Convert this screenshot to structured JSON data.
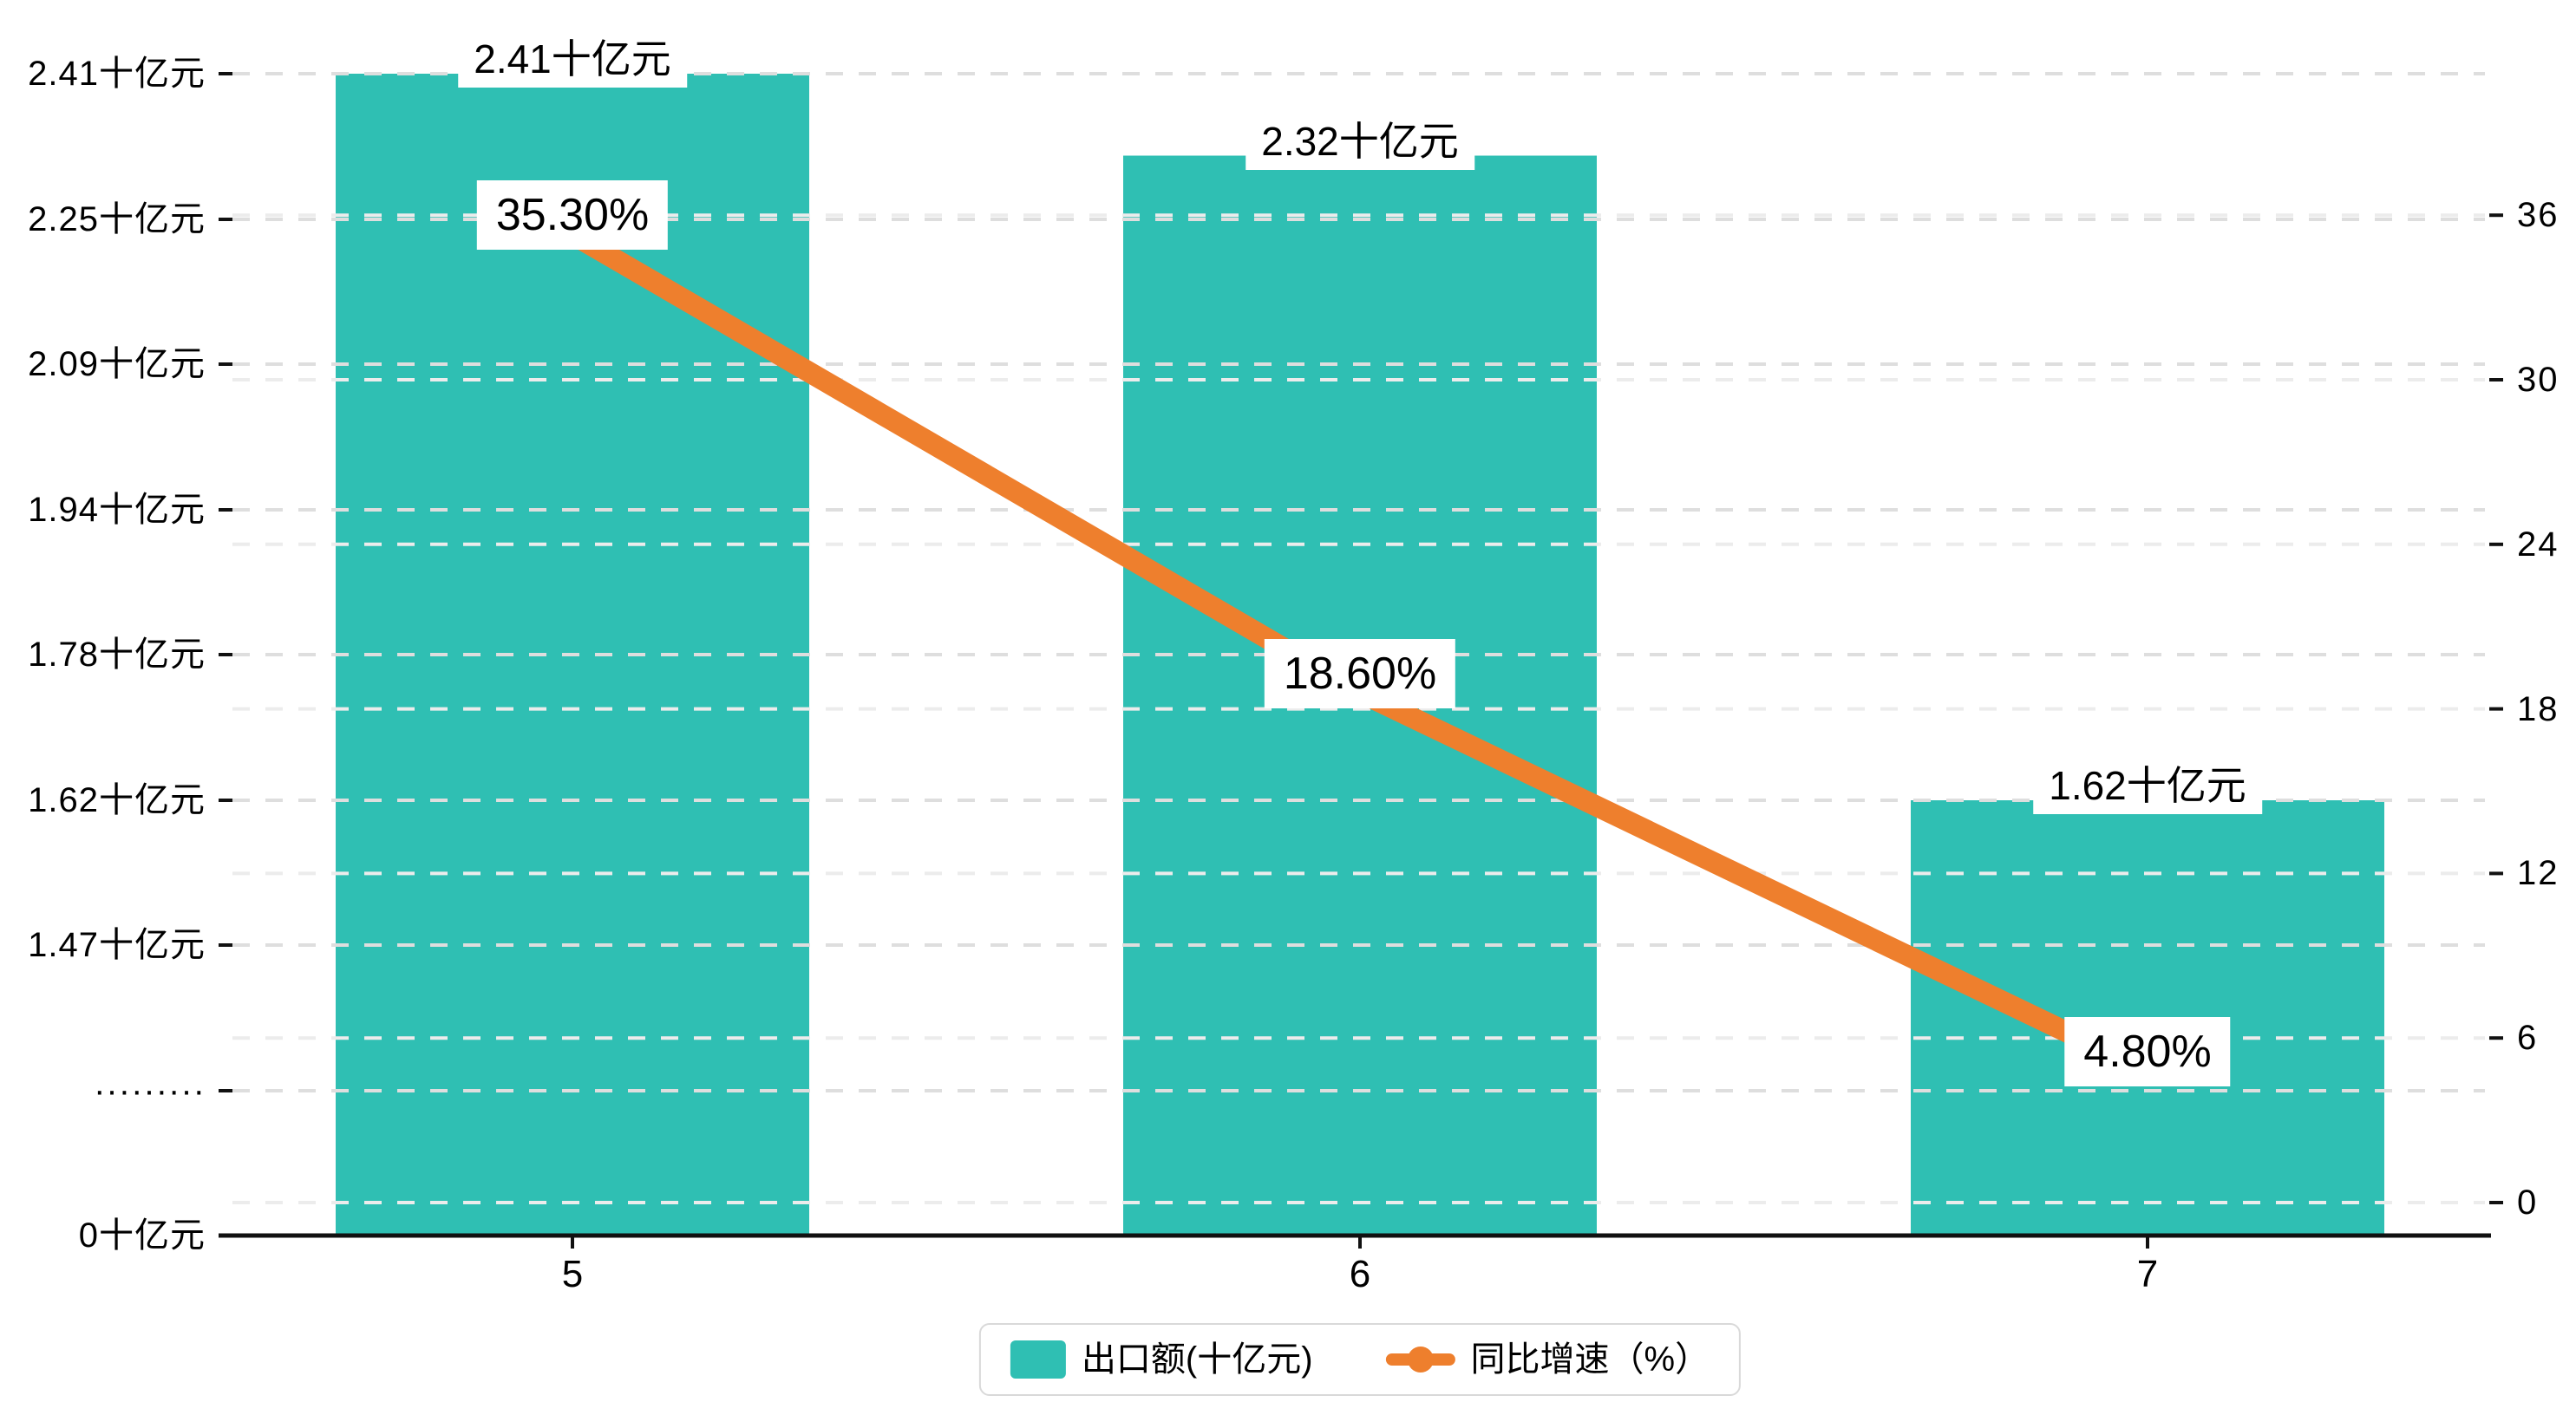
{
  "chart_data": {
    "type": "bar",
    "subtype": "bar-line-combo-dual-axis",
    "categories": [
      "5",
      "6",
      "7"
    ],
    "series": [
      {
        "name": "出口额(十亿元)",
        "type": "bar",
        "axis": "left",
        "unit": "十亿元",
        "values": [
          2.41,
          2.32,
          1.62
        ],
        "data_labels": [
          "2.41十亿元",
          "2.32十亿元",
          "1.62十亿元"
        ],
        "color": "#2fbfb3"
      },
      {
        "name": "同比增速（%）",
        "type": "line",
        "axis": "right",
        "unit": "%",
        "values": [
          35.3,
          18.6,
          4.8
        ],
        "data_labels": [
          "35.30%",
          "18.60%",
          "4.80%"
        ],
        "color": "#ee7f2d"
      }
    ],
    "left_axis": {
      "tick_labels": [
        "0十亿元",
        "·········",
        "1.47十亿元",
        "1.62十亿元",
        "1.78十亿元",
        "1.94十亿元",
        "2.09十亿元",
        "2.25十亿元",
        "2.41十亿元"
      ],
      "numeric_tick_values": [
        1.47,
        1.62,
        1.78,
        1.94,
        2.09,
        2.25,
        2.41
      ],
      "broken_axis": true
    },
    "right_axis": {
      "tick_labels": [
        "0",
        "6",
        "12",
        "18",
        "24",
        "30",
        "36"
      ],
      "min": 0,
      "max": 36,
      "interval": 6
    },
    "x_axis": {
      "tick_labels": [
        "5",
        "6",
        "7"
      ]
    },
    "grid": true,
    "gridline_style": "dashed",
    "legend_position": "bottom-center"
  },
  "legend": {
    "items": [
      {
        "label": "出口额(十亿元)",
        "marker": "bar-swatch",
        "color": "#2fbfb3"
      },
      {
        "label": "同比增速（%）",
        "marker": "line-dot",
        "color": "#ee7f2d"
      }
    ]
  },
  "colors": {
    "bar": "#2fbfb3",
    "line": "#ee7f2d",
    "grid_left": "#dedede",
    "grid_right": "#ececec",
    "axis": "#111111",
    "text": "#000000",
    "label_bg": "#ffffff",
    "legend_border": "#d9d9d9",
    "background": "#ffffff"
  }
}
